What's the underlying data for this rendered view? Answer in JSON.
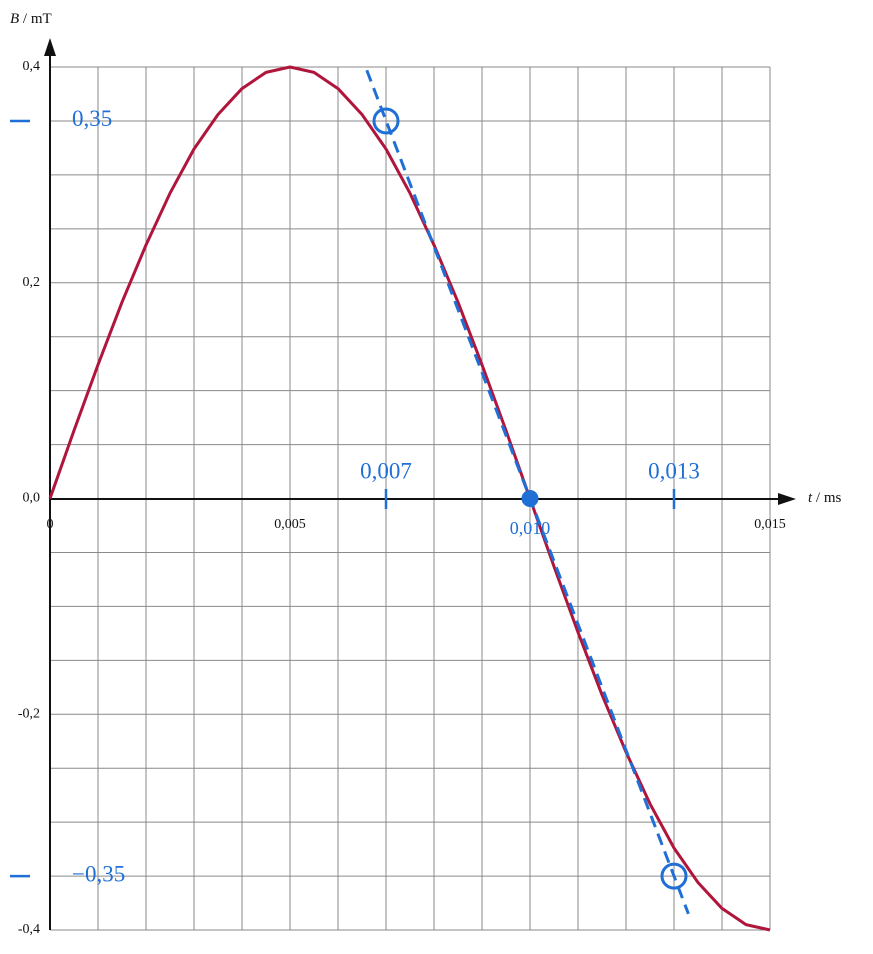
{
  "chart_data": {
    "type": "line",
    "xlabel": {
      "symbol": "t",
      "unit": "/ ms"
    },
    "ylabel": {
      "symbol": "B",
      "unit": "/ mT"
    },
    "xlim": [
      0,
      0.015
    ],
    "ylim": [
      -0.4,
      0.4
    ],
    "xticks": [
      0,
      {
        "value": 0.005,
        "label": "0,005"
      },
      {
        "value": 0.015,
        "label": "0,015"
      }
    ],
    "yticks": [
      {
        "value": 0.4,
        "label": "0,4"
      },
      {
        "value": 0.2,
        "label": "0,2"
      },
      {
        "value": 0,
        "label": "0,0"
      },
      {
        "value": -0.2,
        "label": "-0,2"
      },
      {
        "value": -0.4,
        "label": "-0,4"
      }
    ],
    "grid": {
      "x_step": 0.001,
      "y_step": 0.05
    },
    "curve": {
      "color": "#b0153c",
      "x": [
        0,
        0.0005,
        0.001,
        0.0015,
        0.002,
        0.0025,
        0.003,
        0.0035,
        0.004,
        0.0045,
        0.005,
        0.0055,
        0.006,
        0.0065,
        0.007,
        0.0075,
        0.008,
        0.0085,
        0.009,
        0.0095,
        0.01,
        0.0105,
        0.011,
        0.0115,
        0.012,
        0.0125,
        0.013,
        0.0135,
        0.014,
        0.0145,
        0.015
      ],
      "values": [
        0,
        0.063,
        0.124,
        0.182,
        0.235,
        0.283,
        0.324,
        0.356,
        0.38,
        0.395,
        0.4,
        0.395,
        0.38,
        0.356,
        0.324,
        0.283,
        0.235,
        0.182,
        0.124,
        0.063,
        0,
        -0.063,
        -0.124,
        -0.182,
        -0.235,
        -0.283,
        -0.324,
        -0.356,
        -0.38,
        -0.395,
        -0.4
      ]
    },
    "tangent": {
      "color": "#1f6fd6",
      "x": [
        0.0066,
        0.0133
      ],
      "values": [
        0.397,
        -0.385
      ]
    },
    "points": [
      {
        "x": 0.007,
        "y": 0.35,
        "style": "open"
      },
      {
        "x": 0.01,
        "y": 0,
        "style": "filled",
        "label": "0,010"
      },
      {
        "x": 0.013,
        "y": -0.35,
        "style": "open"
      }
    ],
    "x_guides": [
      {
        "x": 0.007,
        "label": "0,007"
      },
      {
        "x": 0.013,
        "label": "0,013"
      }
    ],
    "y_guides": [
      {
        "y": 0.35,
        "label": "0,35"
      },
      {
        "y": -0.35,
        "label": "−0,35"
      }
    ]
  }
}
